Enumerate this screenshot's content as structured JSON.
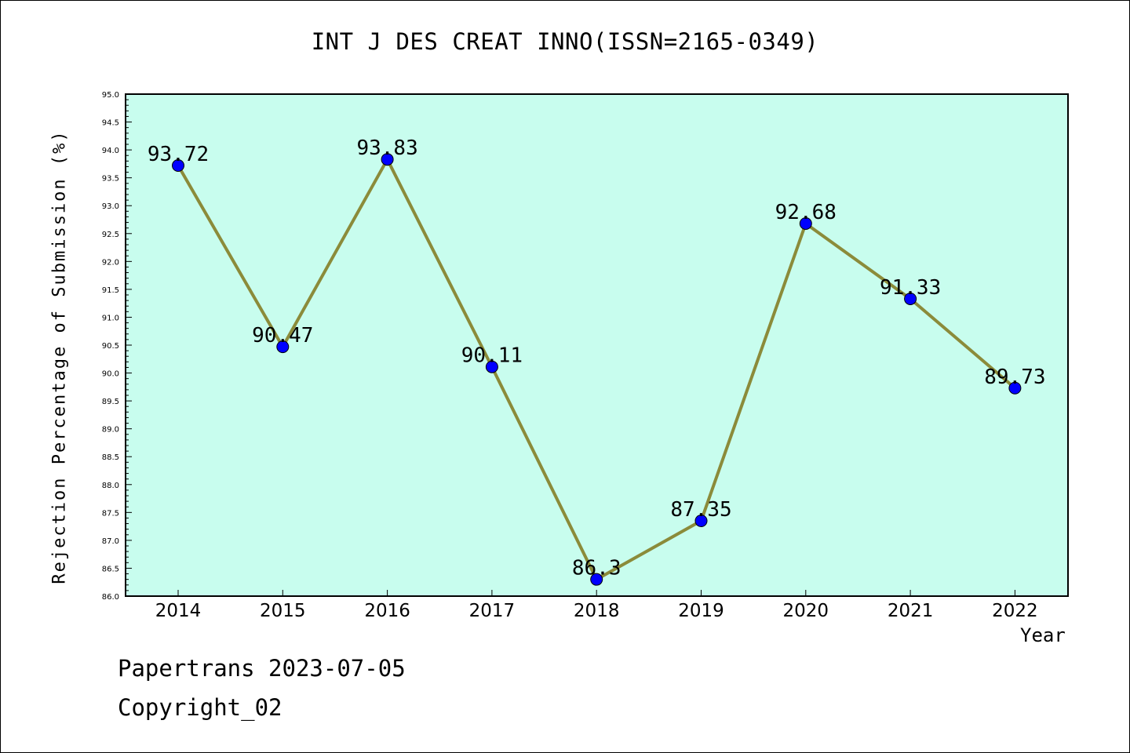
{
  "title": "INT J DES CREAT INNO(ISSN=2165-0349)",
  "footer": {
    "line1": "Papertrans 2023-07-05",
    "line2": "Copyright_02"
  },
  "colors": {
    "plot_background": "#c8fdee",
    "line": "#8b8b3a",
    "marker": "#0000ff",
    "axis": "#000000"
  },
  "chart_data": {
    "type": "line",
    "title": "INT J DES CREAT INNO(ISSN=2165-0349)",
    "xlabel": "Year",
    "ylabel": "Rejection Percentage of Submission (%)",
    "x": [
      "2014",
      "2015",
      "2016",
      "2017",
      "2018",
      "2019",
      "2020",
      "2021",
      "2022"
    ],
    "values": [
      93.72,
      90.47,
      93.83,
      90.11,
      86.3,
      87.35,
      92.68,
      91.33,
      89.73
    ],
    "data_labels": [
      "93.72",
      "90.47",
      "93.83",
      "90.11",
      "86.3",
      "87.35",
      "92.68",
      "91.33",
      "89.73"
    ],
    "ylim": [
      86.0,
      95.0
    ],
    "yticks": [
      "86.0",
      "86.5",
      "87.0",
      "87.5",
      "88.0",
      "88.5",
      "89.0",
      "89.5",
      "90.0",
      "90.5",
      "91.0",
      "91.5",
      "92.0",
      "92.5",
      "93.0",
      "93.5",
      "94.0",
      "94.5",
      "95.0"
    ],
    "grid": false,
    "legend": "none"
  }
}
